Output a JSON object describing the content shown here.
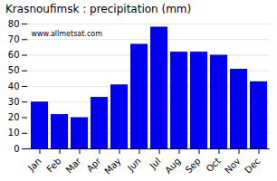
{
  "chart_data": {
    "type": "bar",
    "title": "Krasnoufimsk : precipitation (mm)",
    "categories": [
      "Jan",
      "Feb",
      "Mar",
      "Apr",
      "May",
      "Jun",
      "Jul",
      "Aug",
      "Sep",
      "Oct",
      "Nov",
      "Dec"
    ],
    "values": [
      30,
      22,
      20,
      33,
      41,
      67,
      78,
      62,
      62,
      60,
      51,
      43
    ],
    "color": "#0000EE",
    "ylim": [
      0,
      80
    ],
    "yticks": [
      0,
      10,
      20,
      30,
      40,
      50,
      60,
      70,
      80
    ],
    "grid": true,
    "annotations": [
      "www.allmetsat.com"
    ]
  }
}
